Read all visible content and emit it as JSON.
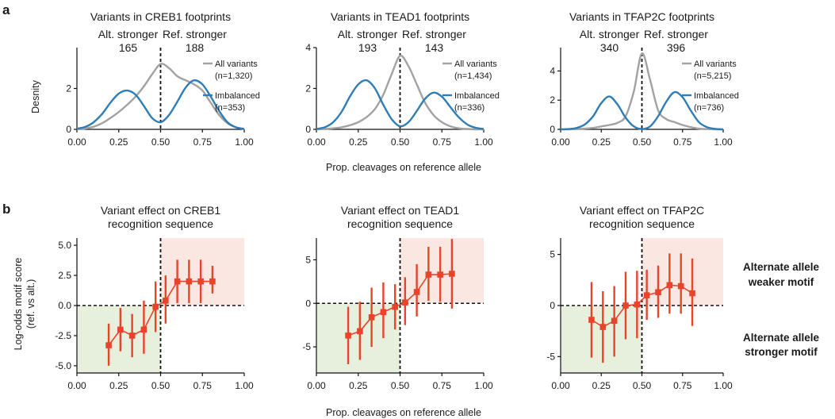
{
  "panel_letters": {
    "a": "a",
    "b": "b"
  },
  "colors": {
    "all_variants": "#a2a2a2",
    "imbalanced": "#2f7db6",
    "alt_stronger": "#33b233",
    "ref_stronger": "#f07d6b",
    "effect_line": "#e8442b",
    "ref_box": "#fbe7e2",
    "alt_box": "#e6f0dd",
    "annot_weaker": "#f07d6b",
    "annot_stronger": "#2b9a3a"
  },
  "shared_labels": {
    "xlabel_a": "Prop. cleavages on reference allele",
    "xlabel_b": "Prop. cleavages on reference allele",
    "ylabel_a": "Desnity",
    "ylabel_b_line1": "Log-odds motif score",
    "ylabel_b_line2": "(ref. vs alt.)"
  },
  "annotations": {
    "weaker_line1": "Alternate allele",
    "weaker_line2": "weaker motif",
    "stronger_line1": "Alternate allele",
    "stronger_line2": "stronger motif"
  },
  "chart_data": [
    {
      "type": "line",
      "panel": "a",
      "title": "Variants in CREB1 footprints",
      "alt_label": "Alt. stronger",
      "alt_count": "165",
      "ref_label": "Ref. stronger",
      "ref_count": "188",
      "xlim": [
        0,
        1
      ],
      "ylim": [
        0,
        4
      ],
      "xticks": [
        "0.00",
        "0.25",
        "0.50",
        "0.75",
        "1.00"
      ],
      "yticks": [
        "0",
        "2"
      ],
      "ytick_values": [
        0,
        2
      ],
      "legend": [
        {
          "line1": "All variants",
          "line2": "(n=1,320)"
        },
        {
          "line1": "Imbalanced",
          "line2": "(n=353)"
        }
      ],
      "series": [
        {
          "name": "All variants",
          "x": [
            0.0,
            0.05,
            0.1,
            0.15,
            0.2,
            0.25,
            0.3,
            0.35,
            0.4,
            0.45,
            0.5,
            0.55,
            0.6,
            0.65,
            0.7,
            0.75,
            0.8,
            0.85,
            0.9,
            0.95,
            1.0
          ],
          "y": [
            0.0,
            0.04,
            0.13,
            0.3,
            0.55,
            0.85,
            1.2,
            1.6,
            2.1,
            2.7,
            3.2,
            3.0,
            2.6,
            2.4,
            2.2,
            1.9,
            1.3,
            0.7,
            0.3,
            0.1,
            0.02
          ]
        },
        {
          "name": "Imbalanced",
          "x": [
            0.0,
            0.05,
            0.1,
            0.15,
            0.2,
            0.25,
            0.3,
            0.35,
            0.4,
            0.45,
            0.5,
            0.55,
            0.6,
            0.65,
            0.7,
            0.75,
            0.8,
            0.85,
            0.9,
            0.95,
            1.0
          ],
          "y": [
            0.03,
            0.12,
            0.35,
            0.75,
            1.3,
            1.75,
            1.9,
            1.7,
            1.15,
            0.55,
            0.35,
            0.7,
            1.35,
            2.05,
            2.4,
            2.2,
            1.6,
            0.9,
            0.35,
            0.1,
            0.02
          ]
        }
      ]
    },
    {
      "type": "line",
      "panel": "a",
      "title": "Variants in TEAD1 footprints",
      "alt_label": "Alt. stronger",
      "alt_count": "193",
      "ref_label": "Ref. stronger",
      "ref_count": "143",
      "xlim": [
        0,
        1
      ],
      "ylim": [
        0,
        4
      ],
      "xticks": [
        "0.00",
        "0.25",
        "0.50",
        "0.75",
        "1.00"
      ],
      "yticks": [
        "0",
        "2",
        "4"
      ],
      "ytick_values": [
        0,
        2,
        4
      ],
      "legend": [
        {
          "line1": "All variants",
          "line2": "(n=1,434)"
        },
        {
          "line1": "Imbalanced",
          "line2": "(n=336)"
        }
      ],
      "series": [
        {
          "name": "All variants",
          "x": [
            0.0,
            0.05,
            0.1,
            0.15,
            0.2,
            0.25,
            0.3,
            0.35,
            0.4,
            0.45,
            0.5,
            0.55,
            0.6,
            0.65,
            0.7,
            0.75,
            0.8,
            0.85,
            0.9,
            0.95,
            1.0
          ],
          "y": [
            0.0,
            0.02,
            0.05,
            0.1,
            0.2,
            0.35,
            0.6,
            1.0,
            1.7,
            2.7,
            3.6,
            3.1,
            2.2,
            1.3,
            0.7,
            0.35,
            0.15,
            0.05,
            0.02,
            0.0,
            0.0
          ]
        },
        {
          "name": "Imbalanced",
          "x": [
            0.0,
            0.05,
            0.1,
            0.15,
            0.2,
            0.25,
            0.3,
            0.35,
            0.4,
            0.45,
            0.5,
            0.55,
            0.6,
            0.65,
            0.7,
            0.75,
            0.8,
            0.85,
            0.9,
            0.95,
            1.0
          ],
          "y": [
            0.02,
            0.1,
            0.35,
            0.85,
            1.6,
            2.2,
            2.4,
            2.0,
            1.2,
            0.5,
            0.15,
            0.35,
            0.9,
            1.5,
            1.8,
            1.6,
            1.1,
            0.6,
            0.25,
            0.08,
            0.02
          ]
        }
      ]
    },
    {
      "type": "line",
      "panel": "a",
      "title": "Variants in TFAP2C footprints",
      "alt_label": "Alt. stronger",
      "alt_count": "340",
      "ref_label": "Ref. stronger",
      "ref_count": "396",
      "xlim": [
        0,
        1
      ],
      "ylim": [
        0,
        5.6
      ],
      "xticks": [
        "0.00",
        "0.25",
        "0.50",
        "0.75",
        "1.00"
      ],
      "yticks": [
        "0",
        "2",
        "4"
      ],
      "ytick_values": [
        0,
        2,
        4
      ],
      "legend": [
        {
          "line1": "All variants",
          "line2": "(n=5,215)"
        },
        {
          "line1": "Imbalanced",
          "line2": "(n=736)"
        }
      ],
      "series": [
        {
          "name": "All variants",
          "x": [
            0.0,
            0.05,
            0.1,
            0.15,
            0.2,
            0.25,
            0.3,
            0.35,
            0.4,
            0.45,
            0.5,
            0.55,
            0.6,
            0.65,
            0.7,
            0.75,
            0.8,
            0.85,
            0.9,
            0.95,
            1.0
          ],
          "y": [
            0.0,
            0.0,
            0.02,
            0.05,
            0.1,
            0.2,
            0.3,
            0.45,
            0.9,
            2.6,
            5.2,
            3.4,
            1.3,
            0.7,
            0.5,
            0.3,
            0.15,
            0.05,
            0.02,
            0.0,
            0.0
          ]
        },
        {
          "name": "Imbalanced",
          "x": [
            0.0,
            0.05,
            0.1,
            0.15,
            0.2,
            0.25,
            0.3,
            0.35,
            0.4,
            0.45,
            0.5,
            0.55,
            0.6,
            0.65,
            0.7,
            0.75,
            0.8,
            0.85,
            0.9,
            0.95,
            1.0
          ],
          "y": [
            0.0,
            0.02,
            0.1,
            0.35,
            0.9,
            1.8,
            2.25,
            1.7,
            0.8,
            0.2,
            0.02,
            0.2,
            0.9,
            1.9,
            2.55,
            2.2,
            1.3,
            0.5,
            0.15,
            0.03,
            0.0
          ]
        }
      ]
    },
    {
      "type": "line",
      "panel": "b",
      "title_line1": "Variant effect on CREB1",
      "title_line2": "recognition sequence",
      "xlim": [
        0,
        1
      ],
      "ylim": [
        -5.6,
        5.6
      ],
      "xticks": [
        "0.00",
        "0.25",
        "0.50",
        "0.75",
        "1.00"
      ],
      "yticks": [
        "5.0",
        "2.5",
        "0.0",
        "-2.5",
        "-5.0"
      ],
      "ytick_values": [
        5,
        2.5,
        0,
        -2.5,
        -5
      ],
      "x": [
        0.19,
        0.26,
        0.33,
        0.4,
        0.47,
        0.53,
        0.6,
        0.67,
        0.74,
        0.81
      ],
      "y": [
        -3.3,
        -2.0,
        -2.5,
        -2.0,
        -0.1,
        0.4,
        2.0,
        2.0,
        2.0,
        2.0
      ],
      "lower": [
        -5.0,
        -3.8,
        -4.3,
        -4.0,
        -2.2,
        -1.5,
        0.2,
        0.2,
        0.2,
        1.0
      ],
      "upper": [
        -1.5,
        -0.2,
        -0.7,
        0.4,
        2.0,
        2.5,
        3.8,
        3.8,
        3.8,
        3.3
      ]
    },
    {
      "type": "line",
      "panel": "b",
      "title_line1": "Variant effect on TEAD1",
      "title_line2": "recognition sequence",
      "xlim": [
        0,
        1
      ],
      "ylim": [
        -8,
        7.5
      ],
      "xticks": [
        "0.00",
        "0.25",
        "0.50",
        "0.75",
        "1.00"
      ],
      "yticks": [
        "5",
        "0",
        "-5"
      ],
      "ytick_values": [
        5,
        0,
        -5
      ],
      "x": [
        0.19,
        0.26,
        0.33,
        0.4,
        0.47,
        0.53,
        0.6,
        0.67,
        0.74,
        0.81
      ],
      "y": [
        -3.7,
        -3.2,
        -1.6,
        -1.0,
        -0.4,
        0.1,
        1.3,
        3.3,
        3.3,
        3.4
      ],
      "lower": [
        -7.0,
        -6.5,
        -5.0,
        -4.0,
        -3.0,
        -2.5,
        -1.5,
        0.3,
        0.2,
        -0.6
      ],
      "upper": [
        -0.4,
        0.2,
        1.8,
        2.4,
        2.2,
        3.0,
        4.5,
        6.5,
        6.5,
        7.4
      ]
    },
    {
      "type": "line",
      "panel": "b",
      "title_line1": "Variant effect on TFAP2C",
      "title_line2": "recognition sequence",
      "xlim": [
        0,
        1
      ],
      "ylim": [
        -6.6,
        6.6
      ],
      "xticks": [
        "0.00",
        "0.25",
        "0.50",
        "0.75",
        "1.00"
      ],
      "yticks": [
        "5",
        "0",
        "-5"
      ],
      "ytick_values": [
        5,
        0,
        -5
      ],
      "x": [
        0.19,
        0.26,
        0.33,
        0.4,
        0.47,
        0.53,
        0.6,
        0.67,
        0.74,
        0.81
      ],
      "y": [
        -1.4,
        -2.1,
        -1.5,
        0.0,
        0.1,
        1.0,
        1.3,
        2.0,
        1.9,
        1.2
      ],
      "lower": [
        -5.1,
        -5.6,
        -5.0,
        -3.3,
        -3.2,
        -1.4,
        -1.2,
        -0.8,
        -0.8,
        -2.0
      ],
      "upper": [
        2.3,
        1.4,
        1.9,
        3.3,
        3.4,
        3.5,
        3.9,
        5.1,
        5.1,
        4.6
      ]
    }
  ]
}
